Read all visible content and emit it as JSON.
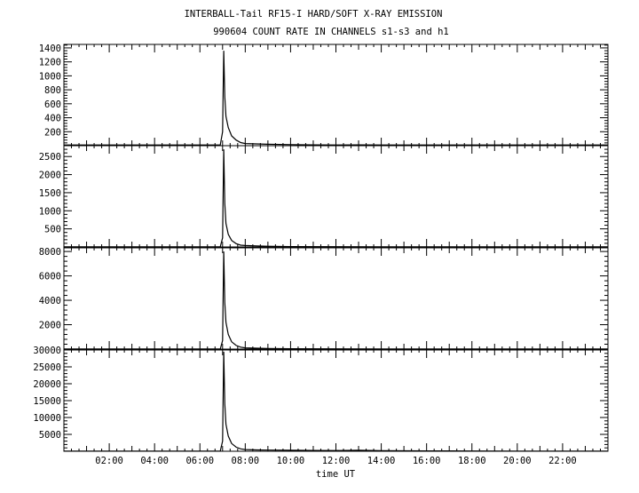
{
  "chart_data": {
    "type": "line",
    "title": "INTERBALL-Tail RF15-I HARD/SOFT X-RAY EMISSION",
    "subtitle": "990604  COUNT RATE IN CHANNELS s1-s3 and h1",
    "xlabel": "time UT",
    "x_ticks": [
      "02:00",
      "04:00",
      "06:00",
      "08:00",
      "10:00",
      "12:00",
      "14:00",
      "16:00",
      "18:00",
      "20:00",
      "22:00"
    ],
    "x_tick_hours": [
      2,
      4,
      6,
      8,
      10,
      12,
      14,
      16,
      18,
      20,
      22
    ],
    "xlim": [
      0,
      24
    ],
    "grid": false,
    "panels": [
      {
        "ylim": [
          0,
          1450
        ],
        "y_ticks": [
          200,
          400,
          600,
          800,
          1000,
          1200,
          1400
        ],
        "series": [
          {
            "x": [
              0,
              2,
              4,
              6,
              6.9,
              7.0,
              7.05,
              7.1,
              7.15,
              7.25,
              7.4,
              7.6,
              7.8,
              8.0,
              8.5,
              9,
              10,
              11,
              12,
              13,
              14,
              16,
              18,
              20,
              22,
              24
            ],
            "values": [
              10,
              10,
              10,
              10,
              10,
              200,
              1360,
              700,
              420,
              260,
              140,
              80,
              45,
              30,
              25,
              20,
              15,
              12,
              10,
              12,
              10,
              10,
              10,
              10,
              10,
              10
            ]
          }
        ]
      },
      {
        "ylim": [
          0,
          2800
        ],
        "y_ticks": [
          500,
          1000,
          1500,
          2000,
          2500
        ],
        "series": [
          {
            "x": [
              0,
              2,
              4,
              6,
              6.9,
              7.0,
              7.05,
              7.1,
              7.15,
              7.25,
              7.4,
              7.6,
              7.8,
              8.0,
              8.5,
              9,
              10,
              12,
              14,
              16,
              18,
              20,
              22,
              24
            ],
            "values": [
              5,
              5,
              5,
              5,
              5,
              250,
              2700,
              1200,
              650,
              350,
              180,
              90,
              50,
              40,
              30,
              20,
              10,
              8,
              5,
              5,
              5,
              5,
              5,
              5
            ]
          }
        ]
      },
      {
        "ylim": [
          0,
          8300
        ],
        "y_ticks": [
          2000,
          4000,
          6000,
          8000
        ],
        "series": [
          {
            "x": [
              0,
              2,
              4,
              6,
              6.9,
              7.0,
              7.05,
              7.1,
              7.15,
              7.25,
              7.4,
              7.6,
              7.8,
              8.0,
              8.5,
              9,
              10,
              12,
              14,
              16,
              18,
              20,
              22,
              24
            ],
            "values": [
              10,
              10,
              10,
              10,
              10,
              700,
              8000,
              3800,
              2200,
              1200,
              600,
              300,
              160,
              100,
              70,
              50,
              30,
              20,
              15,
              10,
              10,
              10,
              10,
              10
            ]
          }
        ]
      },
      {
        "ylim": [
          0,
          30000
        ],
        "y_ticks": [
          5000,
          10000,
          15000,
          20000,
          25000,
          30000
        ],
        "series": [
          {
            "x": [
              0,
              2,
              4,
              6,
              6.9,
              7.0,
              7.05,
              7.1,
              7.15,
              7.25,
              7.4,
              7.6,
              7.8,
              8.0,
              8.5,
              9,
              10,
              11,
              12,
              13,
              14,
              16,
              18,
              20,
              22,
              24
            ],
            "values": [
              50,
              50,
              50,
              50,
              50,
              3000,
              29500,
              14000,
              8000,
              4500,
              2300,
              1200,
              700,
              500,
              400,
              350,
              300,
              250,
              200,
              300,
              150,
              100,
              80,
              60,
              50,
              50
            ]
          }
        ]
      }
    ]
  }
}
